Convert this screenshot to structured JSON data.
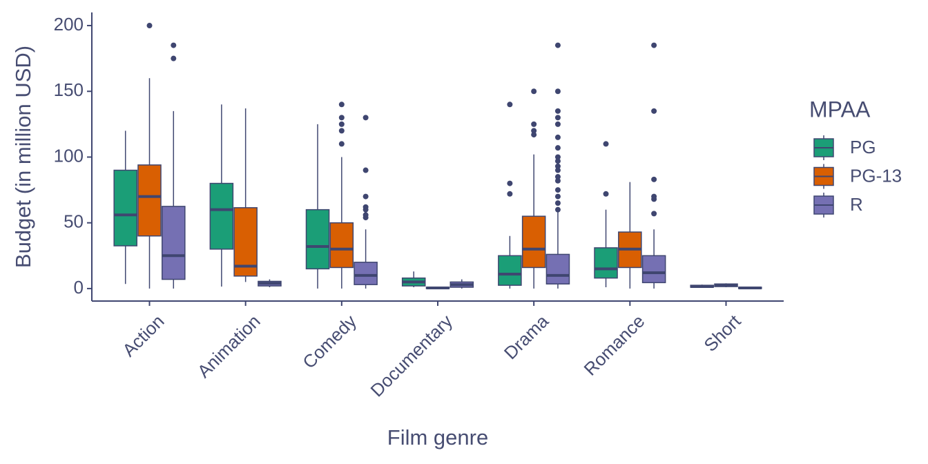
{
  "chart_data": {
    "type": "boxplot",
    "x_label": "Film genre",
    "y_label": "Budget (in million USD)",
    "legend_title": "MPAA",
    "legend_position": "right",
    "categories": [
      "Action",
      "Animation",
      "Comedy",
      "Documentary",
      "Drama",
      "Romance",
      "Short"
    ],
    "ylim": [
      -9.5,
      210
    ],
    "yticks": [
      0,
      50,
      100,
      150,
      200
    ],
    "series": [
      {
        "name": "PG",
        "color": "#1b9e77",
        "boxes": [
          {
            "min": 3.5,
            "q1": 32.5,
            "median": 56,
            "q3": 90,
            "max": 120,
            "outliers": []
          },
          {
            "min": 1.5,
            "q1": 30,
            "median": 60,
            "q3": 80,
            "max": 140,
            "outliers": []
          },
          {
            "min": 0,
            "q1": 15,
            "median": 32,
            "q3": 60,
            "max": 125,
            "outliers": []
          },
          {
            "min": 1,
            "q1": 2,
            "median": 5,
            "q3": 8,
            "max": 13,
            "outliers": []
          },
          {
            "min": 0,
            "q1": 2.5,
            "median": 11,
            "q3": 25,
            "max": 40,
            "outliers": [
              140,
              80,
              72
            ]
          },
          {
            "min": 1,
            "q1": 8,
            "median": 15,
            "q3": 31,
            "max": 60,
            "outliers": [
              110,
              72
            ]
          },
          {
            "min": 1,
            "q1": 1,
            "median": 1.5,
            "q3": 2.5,
            "max": 3,
            "outliers": []
          }
        ]
      },
      {
        "name": "PG-13",
        "color": "#d95f02",
        "boxes": [
          {
            "min": 0,
            "q1": 40,
            "median": 70,
            "q3": 94,
            "max": 160,
            "outliers": [
              200
            ]
          },
          {
            "min": 5,
            "q1": 9.5,
            "median": 17,
            "q3": 61.5,
            "max": 137,
            "outliers": []
          },
          {
            "min": 0,
            "q1": 16,
            "median": 30,
            "q3": 50,
            "max": 100,
            "outliers": [
              140,
              130,
              125,
              120,
              110
            ]
          },
          {
            "min": 0,
            "q1": 0,
            "median": 0.5,
            "q3": 1,
            "max": 1.5,
            "outliers": []
          },
          {
            "min": 0,
            "q1": 16,
            "median": 30,
            "q3": 55,
            "max": 102,
            "outliers": [
              150,
              125,
              120,
              117
            ]
          },
          {
            "min": 0,
            "q1": 16,
            "median": 30,
            "q3": 43,
            "max": 81,
            "outliers": []
          },
          {
            "min": 1,
            "q1": 1.5,
            "median": 2.5,
            "q3": 3.5,
            "max": 4,
            "outliers": []
          }
        ]
      },
      {
        "name": "R",
        "color": "#7570b3",
        "boxes": [
          {
            "min": 0,
            "q1": 7,
            "median": 25,
            "q3": 62.5,
            "max": 135,
            "outliers": [
              185,
              175
            ]
          },
          {
            "min": 1,
            "q1": 2,
            "median": 4,
            "q3": 5.5,
            "max": 7,
            "outliers": []
          },
          {
            "min": 0,
            "q1": 3,
            "median": 10,
            "q3": 20,
            "max": 45,
            "outliers": [
              130,
              90,
              70,
              62,
              60,
              56,
              54
            ]
          },
          {
            "min": 0,
            "q1": 1,
            "median": 3,
            "q3": 5,
            "max": 7,
            "outliers": []
          },
          {
            "min": 0,
            "q1": 3.5,
            "median": 10,
            "q3": 26,
            "max": 58,
            "outliers": [
              185,
              150,
              135,
              130,
              125,
              115,
              107,
              100,
              97,
              93,
              90,
              85,
              82,
              75,
              70,
              65,
              60
            ]
          },
          {
            "min": 0,
            "q1": 4.5,
            "median": 12,
            "q3": 25,
            "max": 45,
            "outliers": [
              185,
              135,
              83,
              70,
              68,
              57
            ]
          },
          {
            "min": 0,
            "q1": 0,
            "median": 0.5,
            "q3": 1,
            "max": 1.5,
            "outliers": []
          }
        ]
      }
    ]
  }
}
